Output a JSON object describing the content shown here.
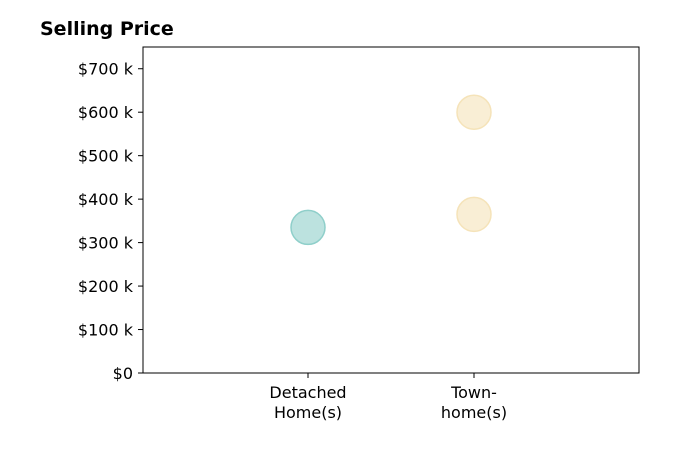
{
  "chart_data": {
    "type": "scatter",
    "title": "Selling Price",
    "xlabel": "",
    "ylabel": "",
    "categories": [
      [
        "Detached",
        "Home(s)"
      ],
      [
        "Town-",
        "home(s)"
      ]
    ],
    "ylim": [
      0,
      750000
    ],
    "yticks": [
      0,
      100000,
      200000,
      300000,
      400000,
      500000,
      600000,
      700000
    ],
    "ytick_labels": [
      "$0",
      "$100 k",
      "$200 k",
      "$300 k",
      "$400 k",
      "$500 k",
      "$600 k",
      "$700 k"
    ],
    "grid": false,
    "legend": "none",
    "points": [
      {
        "category_index": 0,
        "y": 335000,
        "color": "#8fcfca"
      },
      {
        "category_index": 1,
        "y": 600000,
        "color": "#f5e3b9"
      },
      {
        "category_index": 1,
        "y": 365000,
        "color": "#f5e3b9"
      }
    ]
  }
}
